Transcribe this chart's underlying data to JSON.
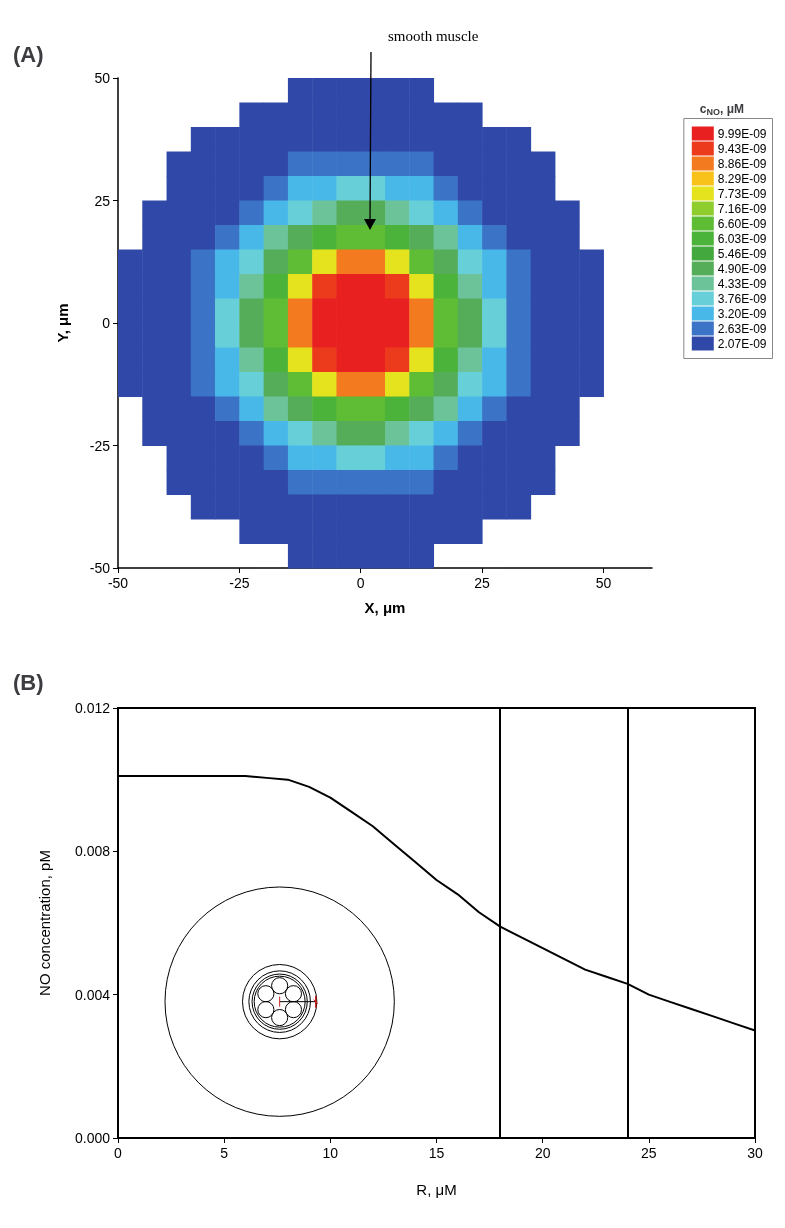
{
  "chart_data": [
    {
      "type": "heatmap",
      "title": "(A)",
      "xlabel": "X, μm",
      "ylabel": "Y, μm",
      "legend_title": "c$_{NO}$, μM",
      "x": [
        -47.5,
        -42.5,
        -37.5,
        -32.5,
        -27.5,
        -22.5,
        -17.5,
        -12.5,
        -7.5,
        -2.5,
        2.5,
        7.5,
        12.5,
        17.5,
        22.5,
        27.5,
        32.5,
        37.5,
        42.5,
        47.5
      ],
      "y": [
        47.5,
        42.5,
        37.5,
        32.5,
        27.5,
        22.5,
        17.5,
        12.5,
        7.5,
        2.5,
        -2.5,
        -7.5,
        -12.5,
        -17.5,
        -22.5,
        -27.5,
        -32.5,
        -37.5,
        -42.5,
        -47.5
      ],
      "cells": [
        [
          null,
          null,
          null,
          null,
          null,
          null,
          null,
          2.07e-09,
          2.07e-09,
          2.07e-09,
          2.07e-09,
          2.07e-09,
          2.07e-09,
          null,
          null,
          null,
          null,
          null,
          null,
          null
        ],
        [
          null,
          null,
          null,
          null,
          null,
          2.07e-09,
          2.07e-09,
          2.07e-09,
          2.07e-09,
          2.07e-09,
          2.07e-09,
          2.07e-09,
          2.07e-09,
          2.07e-09,
          2.07e-09,
          null,
          null,
          null,
          null,
          null
        ],
        [
          null,
          null,
          null,
          2.07e-09,
          2.07e-09,
          2.07e-09,
          2.07e-09,
          2.07e-09,
          2.07e-09,
          2.07e-09,
          2.07e-09,
          2.07e-09,
          2.07e-09,
          2.07e-09,
          2.07e-09,
          2.07e-09,
          2.07e-09,
          null,
          null,
          null
        ],
        [
          null,
          null,
          2.07e-09,
          2.07e-09,
          2.07e-09,
          2.07e-09,
          2.07e-09,
          2.63e-09,
          2.63e-09,
          2.63e-09,
          2.63e-09,
          2.63e-09,
          2.63e-09,
          2.07e-09,
          2.07e-09,
          2.07e-09,
          2.07e-09,
          2.07e-09,
          null,
          null
        ],
        [
          null,
          null,
          2.07e-09,
          2.07e-09,
          2.07e-09,
          2.07e-09,
          2.63e-09,
          3.2e-09,
          3.2e-09,
          3.76e-09,
          3.76e-09,
          3.2e-09,
          3.2e-09,
          2.63e-09,
          2.07e-09,
          2.07e-09,
          2.07e-09,
          2.07e-09,
          null,
          null
        ],
        [
          null,
          2.07e-09,
          2.07e-09,
          2.07e-09,
          2.07e-09,
          2.63e-09,
          3.2e-09,
          3.76e-09,
          4.33e-09,
          4.9e-09,
          4.9e-09,
          4.33e-09,
          3.76e-09,
          3.2e-09,
          2.63e-09,
          2.07e-09,
          2.07e-09,
          2.07e-09,
          2.07e-09,
          null
        ],
        [
          null,
          2.07e-09,
          2.07e-09,
          2.07e-09,
          2.63e-09,
          3.2e-09,
          4.33e-09,
          4.9e-09,
          6.03e-09,
          6.6e-09,
          6.6e-09,
          6.03e-09,
          4.9e-09,
          4.33e-09,
          3.2e-09,
          2.63e-09,
          2.07e-09,
          2.07e-09,
          2.07e-09,
          null
        ],
        [
          2.07e-09,
          2.07e-09,
          2.07e-09,
          2.63e-09,
          3.2e-09,
          3.76e-09,
          4.9e-09,
          6.6e-09,
          7.73e-09,
          8.86e-09,
          8.86e-09,
          7.73e-09,
          6.6e-09,
          4.9e-09,
          3.76e-09,
          3.2e-09,
          2.63e-09,
          2.07e-09,
          2.07e-09,
          2.07e-09
        ],
        [
          2.07e-09,
          2.07e-09,
          2.07e-09,
          2.63e-09,
          3.2e-09,
          4.33e-09,
          6.03e-09,
          7.73e-09,
          9.43e-09,
          9.99e-09,
          9.99e-09,
          9.43e-09,
          7.73e-09,
          6.03e-09,
          4.33e-09,
          3.2e-09,
          2.63e-09,
          2.07e-09,
          2.07e-09,
          2.07e-09
        ],
        [
          2.07e-09,
          2.07e-09,
          2.07e-09,
          2.63e-09,
          3.76e-09,
          4.9e-09,
          6.6e-09,
          8.86e-09,
          9.99e-09,
          9.99e-09,
          9.99e-09,
          9.99e-09,
          8.86e-09,
          6.6e-09,
          4.9e-09,
          3.76e-09,
          2.63e-09,
          2.07e-09,
          2.07e-09,
          2.07e-09
        ],
        [
          2.07e-09,
          2.07e-09,
          2.07e-09,
          2.63e-09,
          3.76e-09,
          4.9e-09,
          6.6e-09,
          8.86e-09,
          9.99e-09,
          9.99e-09,
          9.99e-09,
          9.99e-09,
          8.86e-09,
          6.6e-09,
          4.9e-09,
          3.76e-09,
          2.63e-09,
          2.07e-09,
          2.07e-09,
          2.07e-09
        ],
        [
          2.07e-09,
          2.07e-09,
          2.07e-09,
          2.63e-09,
          3.2e-09,
          4.33e-09,
          6.03e-09,
          7.73e-09,
          9.43e-09,
          9.99e-09,
          9.99e-09,
          9.43e-09,
          7.73e-09,
          6.03e-09,
          4.33e-09,
          3.2e-09,
          2.63e-09,
          2.07e-09,
          2.07e-09,
          2.07e-09
        ],
        [
          2.07e-09,
          2.07e-09,
          2.07e-09,
          2.63e-09,
          3.2e-09,
          3.76e-09,
          4.9e-09,
          6.6e-09,
          7.73e-09,
          8.86e-09,
          8.86e-09,
          7.73e-09,
          6.6e-09,
          4.9e-09,
          3.76e-09,
          3.2e-09,
          2.63e-09,
          2.07e-09,
          2.07e-09,
          2.07e-09
        ],
        [
          null,
          2.07e-09,
          2.07e-09,
          2.07e-09,
          2.63e-09,
          3.2e-09,
          4.33e-09,
          4.9e-09,
          6.03e-09,
          6.6e-09,
          6.6e-09,
          6.03e-09,
          4.9e-09,
          4.33e-09,
          3.2e-09,
          2.63e-09,
          2.07e-09,
          2.07e-09,
          2.07e-09,
          null
        ],
        [
          null,
          2.07e-09,
          2.07e-09,
          2.07e-09,
          2.07e-09,
          2.63e-09,
          3.2e-09,
          3.76e-09,
          4.33e-09,
          4.9e-09,
          4.9e-09,
          4.33e-09,
          3.76e-09,
          3.2e-09,
          2.63e-09,
          2.07e-09,
          2.07e-09,
          2.07e-09,
          2.07e-09,
          null
        ],
        [
          null,
          null,
          2.07e-09,
          2.07e-09,
          2.07e-09,
          2.07e-09,
          2.63e-09,
          3.2e-09,
          3.2e-09,
          3.76e-09,
          3.76e-09,
          3.2e-09,
          3.2e-09,
          2.63e-09,
          2.07e-09,
          2.07e-09,
          2.07e-09,
          2.07e-09,
          null,
          null
        ],
        [
          null,
          null,
          2.07e-09,
          2.07e-09,
          2.07e-09,
          2.07e-09,
          2.07e-09,
          2.63e-09,
          2.63e-09,
          2.63e-09,
          2.63e-09,
          2.63e-09,
          2.63e-09,
          2.07e-09,
          2.07e-09,
          2.07e-09,
          2.07e-09,
          2.07e-09,
          null,
          null
        ],
        [
          null,
          null,
          null,
          2.07e-09,
          2.07e-09,
          2.07e-09,
          2.07e-09,
          2.07e-09,
          2.07e-09,
          2.07e-09,
          2.07e-09,
          2.07e-09,
          2.07e-09,
          2.07e-09,
          2.07e-09,
          2.07e-09,
          2.07e-09,
          null,
          null,
          null
        ],
        [
          null,
          null,
          null,
          null,
          null,
          2.07e-09,
          2.07e-09,
          2.07e-09,
          2.07e-09,
          2.07e-09,
          2.07e-09,
          2.07e-09,
          2.07e-09,
          2.07e-09,
          2.07e-09,
          null,
          null,
          null,
          null,
          null
        ],
        [
          null,
          null,
          null,
          null,
          null,
          null,
          null,
          2.07e-09,
          2.07e-09,
          2.07e-09,
          2.07e-09,
          2.07e-09,
          2.07e-09,
          null,
          null,
          null,
          null,
          null,
          null,
          null
        ]
      ],
      "cticks": [
        {
          "value": 9.99e-09,
          "label": "9.99E-09"
        },
        {
          "value": 9.43e-09,
          "label": "9.43E-09"
        },
        {
          "value": 8.86e-09,
          "label": "8.86E-09"
        },
        {
          "value": 8.29e-09,
          "label": "8.29E-09"
        },
        {
          "value": 7.73e-09,
          "label": "7.73E-09"
        },
        {
          "value": 7.16e-09,
          "label": "7.16E-09"
        },
        {
          "value": 6.6e-09,
          "label": "6.60E-09"
        },
        {
          "value": 6.03e-09,
          "label": "6.03E-09"
        },
        {
          "value": 5.46e-09,
          "label": "5.46E-09"
        },
        {
          "value": 4.9e-09,
          "label": "4.90E-09"
        },
        {
          "value": 4.33e-09,
          "label": "4.33E-09"
        },
        {
          "value": 3.76e-09,
          "label": "3.76E-09"
        },
        {
          "value": 3.2e-09,
          "label": "3.20E-09"
        },
        {
          "value": 2.63e-09,
          "label": "2.63E-09"
        },
        {
          "value": 2.07e-09,
          "label": "2.07E-09"
        }
      ],
      "colors": [
        "#e82020",
        "#ec3a1c",
        "#f47a20",
        "#f9c21a",
        "#e5e21e",
        "#8fcc2e",
        "#5fbd35",
        "#4cb33a",
        "#43a83e",
        "#55ad5a",
        "#6cc39a",
        "#66cfd8",
        "#48b8e8",
        "#3b73c6",
        "#3049a8"
      ],
      "xlim": [
        -50,
        60
      ],
      "ylim": [
        -50,
        50
      ],
      "xticks": [
        -50,
        -25,
        0,
        25,
        50
      ],
      "yticks": [
        -50,
        -25,
        0,
        25,
        50
      ],
      "annotations": [
        "smooth muscle"
      ]
    },
    {
      "type": "line",
      "title": "(B)",
      "xlabel": "R, μM",
      "ylabel": "NO concentration, pM",
      "x": [
        0,
        2,
        4,
        6,
        7,
        8,
        9,
        10,
        11,
        12,
        13,
        14,
        15,
        16,
        17,
        18,
        19,
        20,
        21,
        22,
        23,
        24,
        25,
        26,
        27,
        28,
        29,
        30
      ],
      "series": [
        {
          "color": "#000000",
          "values": [
            0.0101,
            0.0101,
            0.0101,
            0.0101,
            0.01005,
            0.01,
            0.0098,
            0.0095,
            0.0091,
            0.0087,
            0.0082,
            0.0077,
            0.0072,
            0.0068,
            0.0063,
            0.0059,
            0.0056,
            0.0053,
            0.005,
            0.0047,
            0.0045,
            0.0043,
            0.004,
            0.0038,
            0.0036,
            0.0034,
            0.0032,
            0.003
          ]
        }
      ],
      "xlim": [
        0,
        30
      ],
      "ylim": [
        0,
        0.012
      ],
      "xticks": [
        0,
        5,
        10,
        15,
        20,
        25,
        30
      ],
      "yticks": [
        {
          "value": 0,
          "label": "0.000"
        },
        {
          "value": 0.004,
          "label": "0.004"
        },
        {
          "value": 0.008,
          "label": "0.008"
        },
        {
          "value": 0.012,
          "label": "0.012"
        }
      ],
      "ref_lines": [
        {
          "axis": "x",
          "value": 18
        },
        {
          "axis": "x",
          "value": 24
        }
      ],
      "marker": "none",
      "line_style": "solid"
    }
  ]
}
